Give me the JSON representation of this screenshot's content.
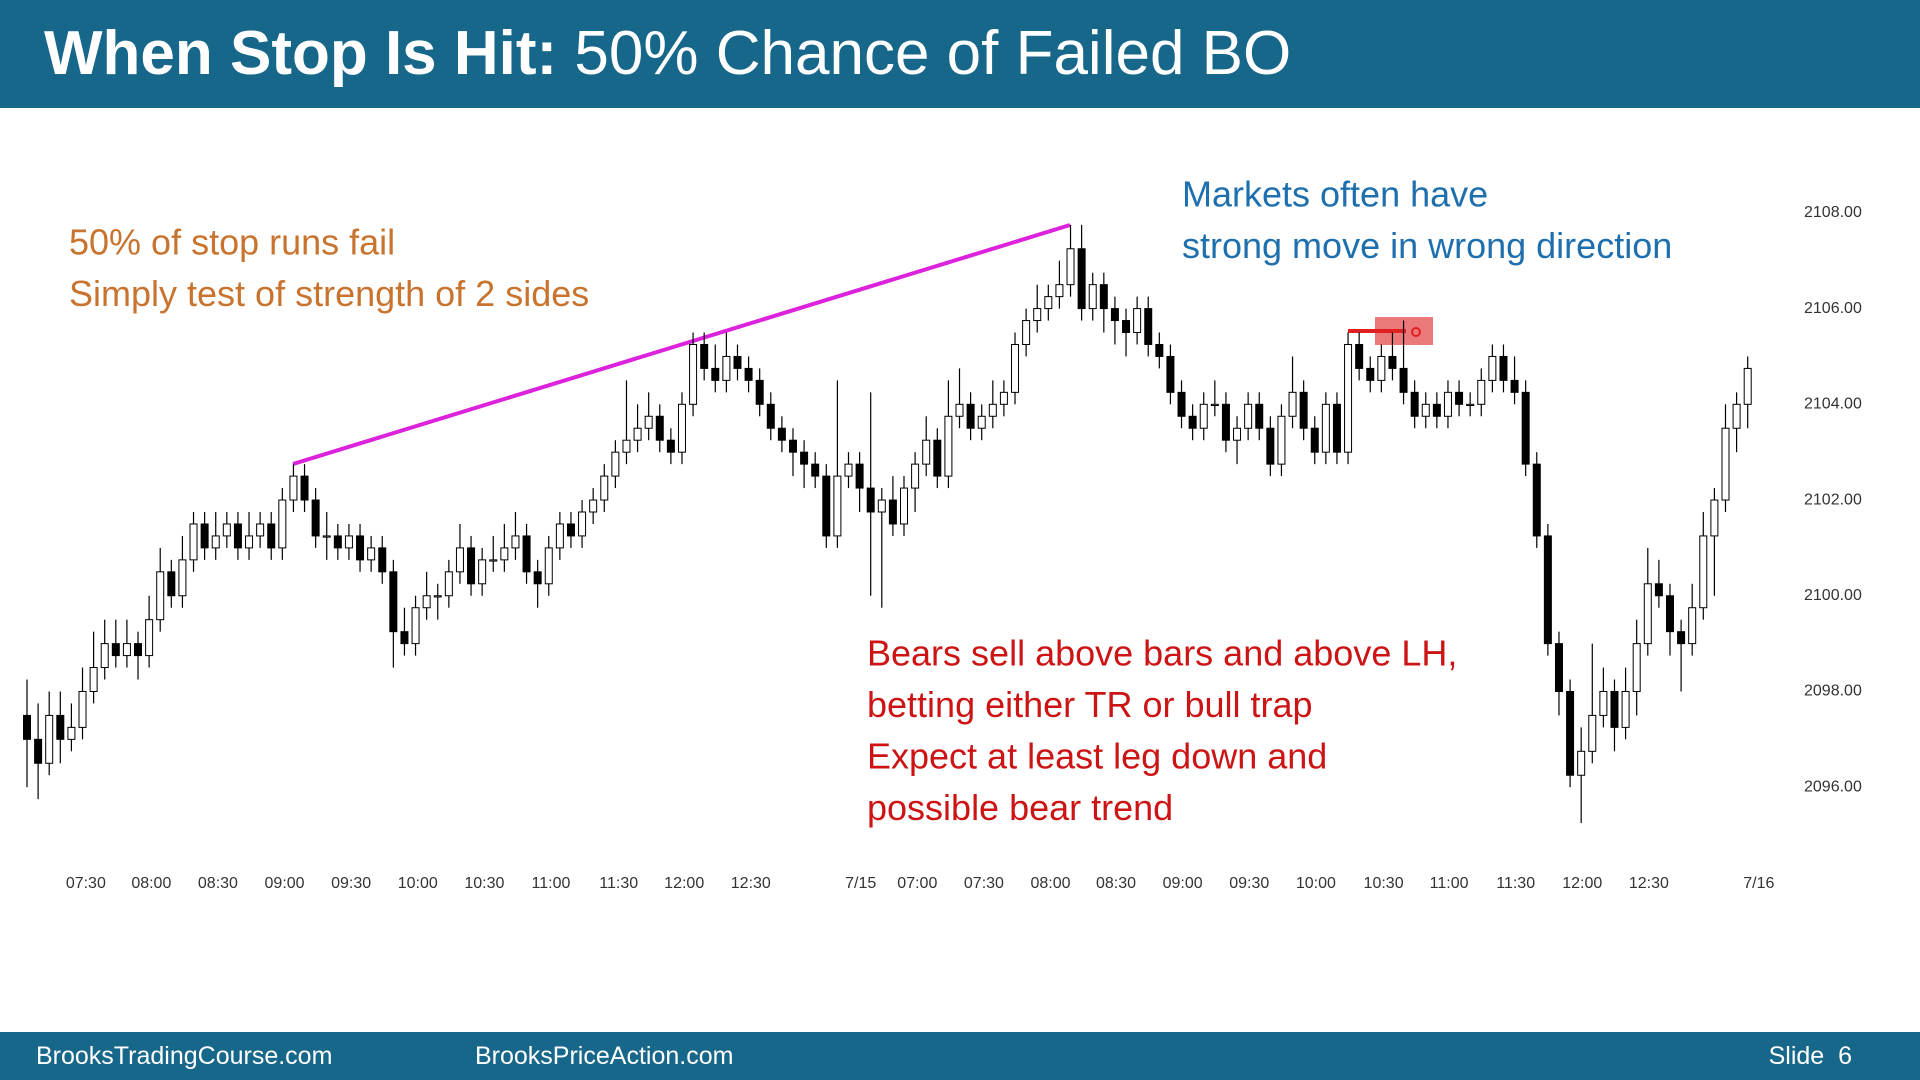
{
  "header": {
    "title_bold": "When Stop Is Hit:",
    "title_rest": "50% Chance of Failed BO"
  },
  "chart_data": {
    "type": "candlestick",
    "up_color": "#ffffff",
    "down_color": "#000000",
    "trendline_color": "#dd22dd",
    "marker_color": "#e02020",
    "ylim": [
      2094.5,
      2109
    ],
    "xlim": [
      -2,
      158
    ],
    "yticks": [
      {
        "value": 2096,
        "label": "2096.00"
      },
      {
        "value": 2098,
        "label": "2098.00"
      },
      {
        "value": 2100,
        "label": "2100.00"
      },
      {
        "value": 2102,
        "label": "2102.00"
      },
      {
        "value": 2104,
        "label": "2104.00"
      },
      {
        "value": 2106,
        "label": "2106.00"
      },
      {
        "value": 2108,
        "label": "2108.00"
      }
    ],
    "xticks": [
      {
        "value": 5.3,
        "label": "07:30"
      },
      {
        "value": 11.2,
        "label": "08:00"
      },
      {
        "value": 17.2,
        "label": "08:30"
      },
      {
        "value": 23.2,
        "label": "09:00"
      },
      {
        "value": 29.2,
        "label": "09:30"
      },
      {
        "value": 35.2,
        "label": "10:00"
      },
      {
        "value": 41.2,
        "label": "10:30"
      },
      {
        "value": 47.2,
        "label": "11:00"
      },
      {
        "value": 53.3,
        "label": "11:30"
      },
      {
        "value": 59.2,
        "label": "12:00"
      },
      {
        "value": 65.2,
        "label": "12:30"
      },
      {
        "value": 75.1,
        "label": "7/15"
      },
      {
        "value": 80.2,
        "label": "07:00"
      },
      {
        "value": 86.2,
        "label": "07:30"
      },
      {
        "value": 92.2,
        "label": "08:00"
      },
      {
        "value": 98.1,
        "label": "08:30"
      },
      {
        "value": 104.1,
        "label": "09:00"
      },
      {
        "value": 110.1,
        "label": "09:30"
      },
      {
        "value": 116.1,
        "label": "10:00"
      },
      {
        "value": 122.2,
        "label": "10:30"
      },
      {
        "value": 128.1,
        "label": "11:00"
      },
      {
        "value": 134.1,
        "label": "11:30"
      },
      {
        "value": 140.1,
        "label": "12:00"
      },
      {
        "value": 146.1,
        "label": "12:30"
      },
      {
        "value": 156,
        "label": "7/16"
      }
    ],
    "candles": [
      [
        2097.5,
        2098.25,
        2096,
        2097
      ],
      [
        2097,
        2097.75,
        2095.75,
        2096.5
      ],
      [
        2096.5,
        2098,
        2096.25,
        2097.5
      ],
      [
        2097.5,
        2098,
        2096.5,
        2097
      ],
      [
        2097,
        2097.75,
        2096.75,
        2097.25
      ],
      [
        2097.25,
        2098.5,
        2097,
        2098
      ],
      [
        2098,
        2099.25,
        2097.75,
        2098.5
      ],
      [
        2098.5,
        2099.5,
        2098.25,
        2099
      ],
      [
        2099,
        2099.5,
        2098.5,
        2098.75
      ],
      [
        2098.75,
        2099.5,
        2098.5,
        2099
      ],
      [
        2099,
        2099.25,
        2098.25,
        2098.75
      ],
      [
        2098.75,
        2100,
        2098.5,
        2099.5
      ],
      [
        2099.5,
        2101,
        2099.25,
        2100.5
      ],
      [
        2100.5,
        2100.75,
        2099.75,
        2100
      ],
      [
        2100,
        2101.25,
        2099.75,
        2100.75
      ],
      [
        2100.75,
        2101.75,
        2100.5,
        2101.5
      ],
      [
        2101.5,
        2101.75,
        2100.75,
        2101
      ],
      [
        2101,
        2101.75,
        2100.75,
        2101.25
      ],
      [
        2101.25,
        2101.75,
        2101,
        2101.5
      ],
      [
        2101.5,
        2101.75,
        2100.75,
        2101
      ],
      [
        2101,
        2101.75,
        2100.75,
        2101.25
      ],
      [
        2101.25,
        2101.75,
        2101,
        2101.5
      ],
      [
        2101.5,
        2101.75,
        2100.75,
        2101
      ],
      [
        2101,
        2102.25,
        2100.75,
        2102
      ],
      [
        2102,
        2102.75,
        2101.75,
        2102.5
      ],
      [
        2102.5,
        2102.75,
        2101.75,
        2102
      ],
      [
        2102,
        2102.25,
        2101,
        2101.25
      ],
      [
        2101.25,
        2101.75,
        2100.75,
        2101.25
      ],
      [
        2101.25,
        2101.5,
        2100.75,
        2101
      ],
      [
        2101,
        2101.5,
        2100.75,
        2101.25
      ],
      [
        2101.25,
        2101.5,
        2100.5,
        2100.75
      ],
      [
        2100.75,
        2101.25,
        2100.5,
        2101
      ],
      [
        2101,
        2101.25,
        2100.25,
        2100.5
      ],
      [
        2100.5,
        2100.75,
        2098.5,
        2099.25
      ],
      [
        2099.25,
        2099.75,
        2098.75,
        2099
      ],
      [
        2099,
        2100,
        2098.75,
        2099.75
      ],
      [
        2099.75,
        2100.5,
        2099.5,
        2100
      ],
      [
        2100,
        2100.25,
        2099.5,
        2100
      ],
      [
        2100,
        2100.75,
        2099.75,
        2100.5
      ],
      [
        2100.5,
        2101.5,
        2100.25,
        2101
      ],
      [
        2101,
        2101.25,
        2100,
        2100.25
      ],
      [
        2100.25,
        2101,
        2100,
        2100.75
      ],
      [
        2100.75,
        2101.25,
        2100.5,
        2100.75
      ],
      [
        2100.75,
        2101.5,
        2100.5,
        2101
      ],
      [
        2101,
        2101.75,
        2100.75,
        2101.25
      ],
      [
        2101.25,
        2101.5,
        2100.25,
        2100.5
      ],
      [
        2100.5,
        2100.75,
        2099.75,
        2100.25
      ],
      [
        2100.25,
        2101.25,
        2100,
        2101
      ],
      [
        2101,
        2101.75,
        2100.75,
        2101.5
      ],
      [
        2101.5,
        2101.75,
        2101,
        2101.25
      ],
      [
        2101.25,
        2102,
        2101,
        2101.75
      ],
      [
        2101.75,
        2102.25,
        2101.5,
        2102
      ],
      [
        2102,
        2102.75,
        2101.75,
        2102.5
      ],
      [
        2102.5,
        2103.25,
        2102.25,
        2103
      ],
      [
        2103,
        2104.5,
        2102.75,
        2103.25
      ],
      [
        2103.25,
        2104,
        2103,
        2103.5
      ],
      [
        2103.5,
        2104.25,
        2103.25,
        2103.75
      ],
      [
        2103.75,
        2104,
        2103,
        2103.25
      ],
      [
        2103.25,
        2103.5,
        2102.75,
        2103
      ],
      [
        2103,
        2104.25,
        2102.75,
        2104
      ],
      [
        2104,
        2105.5,
        2103.75,
        2105.25
      ],
      [
        2105.25,
        2105.5,
        2104.5,
        2104.75
      ],
      [
        2104.75,
        2105.25,
        2104.25,
        2104.5
      ],
      [
        2104.5,
        2105.5,
        2104.25,
        2105
      ],
      [
        2105,
        2105.25,
        2104.5,
        2104.75
      ],
      [
        2104.75,
        2105,
        2104.25,
        2104.5
      ],
      [
        2104.5,
        2104.75,
        2103.75,
        2104
      ],
      [
        2104,
        2104.25,
        2103.25,
        2103.5
      ],
      [
        2103.5,
        2103.75,
        2103,
        2103.25
      ],
      [
        2103.25,
        2103.5,
        2102.5,
        2103
      ],
      [
        2103,
        2103.25,
        2102.25,
        2102.75
      ],
      [
        2102.75,
        2103,
        2102.25,
        2102.5
      ],
      [
        2102.5,
        2102.75,
        2101,
        2101.25
      ],
      [
        2101.25,
        2104.5,
        2101,
        2102.5
      ],
      [
        2102.5,
        2103,
        2102.25,
        2102.75
      ],
      [
        2102.75,
        2103,
        2101.75,
        2102.25
      ],
      [
        2102.25,
        2104.25,
        2100,
        2101.75
      ],
      [
        2101.75,
        2102.25,
        2099.75,
        2102
      ],
      [
        2102,
        2102.5,
        2101.25,
        2101.5
      ],
      [
        2101.5,
        2102.5,
        2101.25,
        2102.25
      ],
      [
        2102.25,
        2103,
        2101.75,
        2102.75
      ],
      [
        2102.75,
        2103.75,
        2102.5,
        2103.25
      ],
      [
        2103.25,
        2103.5,
        2102.25,
        2102.5
      ],
      [
        2102.5,
        2104.5,
        2102.25,
        2103.75
      ],
      [
        2103.75,
        2104.75,
        2103.5,
        2104
      ],
      [
        2104,
        2104.25,
        2103.25,
        2103.5
      ],
      [
        2103.5,
        2104,
        2103.25,
        2103.75
      ],
      [
        2103.75,
        2104.5,
        2103.5,
        2104
      ],
      [
        2104,
        2104.5,
        2103.75,
        2104.25
      ],
      [
        2104.25,
        2105.5,
        2104,
        2105.25
      ],
      [
        2105.25,
        2106,
        2105,
        2105.75
      ],
      [
        2105.75,
        2106.5,
        2105.5,
        2106
      ],
      [
        2106,
        2106.5,
        2105.75,
        2106.25
      ],
      [
        2106.25,
        2107,
        2106,
        2106.5
      ],
      [
        2106.5,
        2107.75,
        2106.25,
        2107.25
      ],
      [
        2107.25,
        2107.75,
        2105.75,
        2106
      ],
      [
        2106,
        2106.75,
        2105.75,
        2106.5
      ],
      [
        2106.5,
        2106.75,
        2105.5,
        2106
      ],
      [
        2106,
        2106.25,
        2105.25,
        2105.75
      ],
      [
        2105.75,
        2106,
        2105,
        2105.5
      ],
      [
        2105.5,
        2106.25,
        2105.25,
        2106
      ],
      [
        2106,
        2106.25,
        2105,
        2105.25
      ],
      [
        2105.25,
        2105.5,
        2104.75,
        2105
      ],
      [
        2105,
        2105.25,
        2104,
        2104.25
      ],
      [
        2104.25,
        2104.5,
        2103.5,
        2103.75
      ],
      [
        2103.75,
        2104,
        2103.25,
        2103.5
      ],
      [
        2103.5,
        2104.25,
        2103.25,
        2104
      ],
      [
        2104,
        2104.5,
        2103.75,
        2104
      ],
      [
        2104,
        2104.25,
        2103,
        2103.25
      ],
      [
        2103.25,
        2103.75,
        2102.75,
        2103.5
      ],
      [
        2103.5,
        2104.25,
        2103.25,
        2104
      ],
      [
        2104,
        2104.25,
        2103.25,
        2103.5
      ],
      [
        2103.5,
        2103.75,
        2102.5,
        2102.75
      ],
      [
        2102.75,
        2104,
        2102.5,
        2103.75
      ],
      [
        2103.75,
        2105,
        2103.5,
        2104.25
      ],
      [
        2104.25,
        2104.5,
        2103.25,
        2103.5
      ],
      [
        2103.5,
        2103.75,
        2102.75,
        2103
      ],
      [
        2103,
        2104.25,
        2102.75,
        2104
      ],
      [
        2104,
        2104.25,
        2102.75,
        2103
      ],
      [
        2103,
        2105.5,
        2102.75,
        2105.25
      ],
      [
        2105.25,
        2105.5,
        2104.5,
        2104.75
      ],
      [
        2104.75,
        2105,
        2104.25,
        2104.5
      ],
      [
        2104.5,
        2105.25,
        2104.25,
        2105
      ],
      [
        2105,
        2105.5,
        2104.5,
        2104.75
      ],
      [
        2104.75,
        2105.75,
        2104,
        2104.25
      ],
      [
        2104.25,
        2104.5,
        2103.5,
        2103.75
      ],
      [
        2103.75,
        2104.25,
        2103.5,
        2104
      ],
      [
        2104,
        2104.25,
        2103.5,
        2103.75
      ],
      [
        2103.75,
        2104.5,
        2103.5,
        2104.25
      ],
      [
        2104.25,
        2104.5,
        2103.75,
        2104
      ],
      [
        2104,
        2104.25,
        2103.75,
        2104
      ],
      [
        2104,
        2104.75,
        2103.75,
        2104.5
      ],
      [
        2104.5,
        2105.25,
        2104.25,
        2105
      ],
      [
        2105,
        2105.25,
        2104.25,
        2104.5
      ],
      [
        2104.5,
        2105,
        2104,
        2104.25
      ],
      [
        2104.25,
        2104.5,
        2102.5,
        2102.75
      ],
      [
        2102.75,
        2103,
        2101,
        2101.25
      ],
      [
        2101.25,
        2101.5,
        2098.75,
        2099
      ],
      [
        2099,
        2099.25,
        2097.5,
        2098
      ],
      [
        2098,
        2098.25,
        2096,
        2096.25
      ],
      [
        2096.25,
        2097.25,
        2095.25,
        2096.75
      ],
      [
        2096.75,
        2099,
        2096.5,
        2097.5
      ],
      [
        2097.5,
        2098.5,
        2097.25,
        2098
      ],
      [
        2098,
        2098.25,
        2096.75,
        2097.25
      ],
      [
        2097.25,
        2098.5,
        2097,
        2098
      ],
      [
        2098,
        2099.5,
        2097.5,
        2099
      ],
      [
        2099,
        2101,
        2098.75,
        2100.25
      ],
      [
        2100.25,
        2100.75,
        2099.75,
        2100
      ],
      [
        2100,
        2100.25,
        2098.75,
        2099.25
      ],
      [
        2099.25,
        2099.5,
        2098,
        2099
      ],
      [
        2099,
        2100.25,
        2098.75,
        2099.75
      ],
      [
        2099.75,
        2101.75,
        2099.5,
        2101.25
      ],
      [
        2101.25,
        2102.25,
        2100,
        2102
      ],
      [
        2102,
        2104,
        2101.75,
        2103.5
      ],
      [
        2103.5,
        2104.25,
        2103,
        2104
      ],
      [
        2104,
        2105,
        2103.5,
        2104.75
      ]
    ],
    "annotations": [
      {
        "color": "#c8732e",
        "lines": [
          "50% of stop runs fail",
          "Simply test of strength of 2 sides"
        ]
      },
      {
        "color": "#1e6fae",
        "lines": [
          "Markets often have",
          "strong move in wrong direction"
        ]
      },
      {
        "color": "#cc1414",
        "lines": [
          "Bears sell above bars and above LH,",
          "betting either TR or bull trap",
          "Expect at least leg down and",
          "possible bear trend"
        ]
      }
    ]
  },
  "footer": {
    "site1": "BrooksTradingCourse.com",
    "site2": "BrooksPriceAction.com",
    "slide": "Slide  6"
  }
}
